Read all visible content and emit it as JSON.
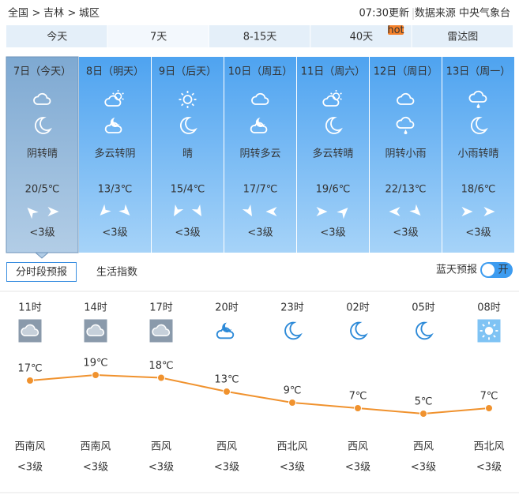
{
  "breadcrumb": {
    "items": [
      "全国",
      "吉林",
      "城区"
    ],
    "separator": ">"
  },
  "update_time": "07:30更新",
  "source": "数据来源 中央气象台",
  "tabs": [
    "今天",
    "7天",
    "8-15天",
    "40天",
    "雷达图"
  ],
  "hot_badge": "hot",
  "days": [
    {
      "date": "7日（今天）",
      "weather": "阴转晴",
      "temp": "20/5℃",
      "wind": "<3级"
    },
    {
      "date": "8日（明天）",
      "weather": "多云转阴",
      "temp": "13/3℃",
      "wind": "<3级"
    },
    {
      "date": "9日（后天）",
      "weather": "晴",
      "temp": "15/4℃",
      "wind": "<3级"
    },
    {
      "date": "10日（周五）",
      "weather": "阴转多云",
      "temp": "17/7℃",
      "wind": "<3级"
    },
    {
      "date": "11日（周六）",
      "weather": "多云转晴",
      "temp": "19/6℃",
      "wind": "<3级"
    },
    {
      "date": "12日（周日）",
      "weather": "阴转小雨",
      "temp": "22/13℃",
      "wind": "<3级"
    },
    {
      "date": "13日（周一）",
      "weather": "小雨转晴",
      "temp": "18/6℃",
      "wind": "<3级"
    }
  ],
  "subtabs": [
    "分时段预报",
    "生活指数"
  ],
  "blue_sky": {
    "label": "蓝天预报",
    "toggle": "开"
  },
  "chart_data": {
    "type": "line",
    "categories": [
      "11时",
      "14时",
      "17时",
      "20时",
      "23时",
      "02时",
      "05时",
      "08时"
    ],
    "values": [
      17,
      19,
      18,
      13,
      9,
      7,
      5,
      7
    ],
    "value_labels": [
      "17℃",
      "19℃",
      "18℃",
      "13℃",
      "9℃",
      "7℃",
      "5℃",
      "7℃"
    ],
    "color": "#f0922e"
  },
  "hourly": {
    "wind_direction": [
      "西南风",
      "西南风",
      "西风",
      "西风",
      "西北风",
      "西风",
      "西风",
      "西北风"
    ],
    "wind_level": [
      "<3级",
      "<3级",
      "<3级",
      "<3级",
      "<3级",
      "<3级",
      "<3级",
      "<3级"
    ]
  }
}
